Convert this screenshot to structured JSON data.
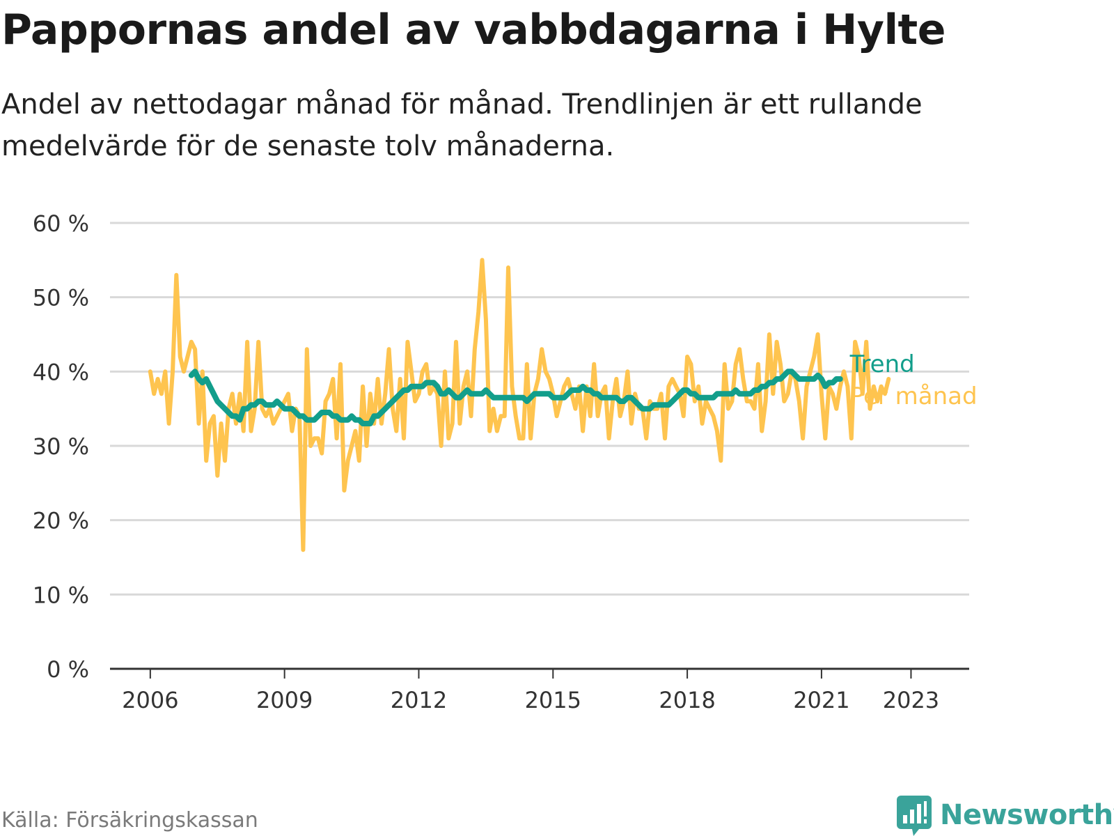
{
  "header": {
    "title": "Pappornas andel av vabbdagarna i Hylte",
    "subtitle": "Andel av nettodagar månad för månad. Trendlinjen är ett rullande medelvärde för de senaste tolv månaderna."
  },
  "footer": {
    "source": "Källa: Försäkringskassan",
    "brand": "Newsworthy"
  },
  "colors": {
    "monthly": "#fec44f",
    "trend": "#129e8b",
    "grid": "#d9d9d9",
    "axis": "#333333",
    "brand": "#3aa39a"
  },
  "chart_data": {
    "type": "line",
    "x_start": "2006-01",
    "x_ticks": [
      {
        "label": "2006",
        "t": 2006.0
      },
      {
        "label": "2009",
        "t": 2009.0
      },
      {
        "label": "2012",
        "t": 2012.0
      },
      {
        "label": "2015",
        "t": 2015.0
      },
      {
        "label": "2018",
        "t": 2018.0
      },
      {
        "label": "2021",
        "t": 2021.0
      },
      {
        "label": "2023",
        "t": 2023.0
      }
    ],
    "y_ticks": [
      {
        "label": "0 %",
        "v": 0
      },
      {
        "label": "10 %",
        "v": 10
      },
      {
        "label": "20 %",
        "v": 20
      },
      {
        "label": "30 %",
        "v": 30
      },
      {
        "label": "40 %",
        "v": 40
      },
      {
        "label": "50 %",
        "v": 50
      },
      {
        "label": "60 %",
        "v": 60
      }
    ],
    "xlim": [
      2005.1,
      2024.3
    ],
    "ylim": [
      0,
      60
    ],
    "grid": true,
    "legend": "right-end-labels",
    "series": [
      {
        "name": "Per månad",
        "values": [
          40,
          37,
          39,
          37,
          40,
          33,
          40,
          53,
          42,
          40,
          42,
          44,
          43,
          33,
          40,
          28,
          33,
          34,
          26,
          33,
          28,
          35,
          37,
          33,
          37,
          32,
          44,
          32,
          35,
          44,
          35,
          34,
          35,
          33,
          34,
          35,
          36,
          37,
          32,
          35,
          34,
          16,
          43,
          30,
          31,
          31,
          29,
          36,
          37,
          39,
          31,
          41,
          24,
          28,
          30,
          32,
          28,
          38,
          30,
          37,
          33,
          39,
          33,
          37,
          43,
          35,
          32,
          39,
          31,
          44,
          40,
          36,
          37,
          40,
          41,
          37,
          38,
          37,
          30,
          40,
          31,
          33,
          44,
          33,
          38,
          40,
          34,
          43,
          48,
          55,
          47,
          32,
          35,
          32,
          34,
          34,
          54,
          38,
          34,
          31,
          31,
          41,
          31,
          37,
          39,
          43,
          40,
          39,
          37,
          34,
          36,
          38,
          39,
          37,
          35,
          38,
          32,
          38,
          34,
          41,
          34,
          37,
          38,
          31,
          36,
          39,
          34,
          36,
          40,
          33,
          37,
          35,
          35,
          31,
          36,
          35,
          35,
          37,
          31,
          38,
          39,
          38,
          37,
          34,
          42,
          41,
          36,
          38,
          33,
          36,
          35,
          34,
          32,
          28,
          41,
          35,
          36,
          41,
          43,
          39,
          36,
          36,
          35,
          41,
          32,
          36,
          45,
          37,
          44,
          41,
          36,
          37,
          40,
          39,
          36,
          31,
          38,
          40,
          42,
          45,
          37,
          31,
          38,
          37,
          35,
          38,
          40,
          38,
          31,
          44,
          42,
          37,
          44,
          35,
          38,
          36,
          38,
          37,
          39
        ],
        "color": "#fec44f"
      },
      {
        "name": "Trend",
        "start": "2006-12",
        "values": [
          39.5,
          40,
          39,
          38.5,
          39,
          38,
          37,
          36,
          35.5,
          35,
          34.5,
          34,
          34,
          33.5,
          35,
          35,
          35.5,
          35.5,
          36,
          36,
          35.5,
          35.5,
          35.5,
          36,
          35.5,
          35,
          35,
          35,
          34.5,
          34,
          34,
          33.5,
          33.5,
          33.5,
          34,
          34.5,
          34.5,
          34.5,
          34,
          34,
          33.5,
          33.5,
          33.5,
          34,
          33.5,
          33.5,
          33,
          33,
          33,
          34,
          34,
          34.5,
          35,
          35.5,
          36,
          36.5,
          37,
          37.5,
          37.5,
          38,
          38,
          38,
          38,
          38.5,
          38.5,
          38.5,
          38,
          37,
          37,
          37.5,
          37,
          36.5,
          36.5,
          37,
          37.5,
          37,
          37,
          37,
          37,
          37.5,
          37,
          36.5,
          36.5,
          36.5,
          36.5,
          36.5,
          36.5,
          36.5,
          36.5,
          36.5,
          36,
          36.5,
          37,
          37,
          37,
          37,
          37,
          36.5,
          36.5,
          36.5,
          36.5,
          37,
          37.5,
          37.5,
          37.5,
          38,
          37.5,
          37.5,
          37,
          37,
          36.5,
          36.5,
          36.5,
          36.5,
          36.5,
          36,
          36,
          36.5,
          36.5,
          36,
          35.5,
          35,
          35,
          35,
          35.5,
          35.5,
          35.5,
          35.5,
          35.5,
          36,
          36.5,
          37,
          37.5,
          37.5,
          37,
          37,
          36.5,
          36.5,
          36.5,
          36.5,
          36.5,
          37,
          37,
          37,
          37,
          37,
          37.5,
          37,
          37,
          37,
          37,
          37.5,
          37.5,
          38,
          38,
          38.5,
          38.5,
          39,
          39,
          39.5,
          40,
          40,
          39.5,
          39,
          39,
          39,
          39,
          39,
          39.5,
          39,
          38,
          38.5,
          38.5,
          39,
          39
        ],
        "color": "#129e8b"
      }
    ]
  }
}
